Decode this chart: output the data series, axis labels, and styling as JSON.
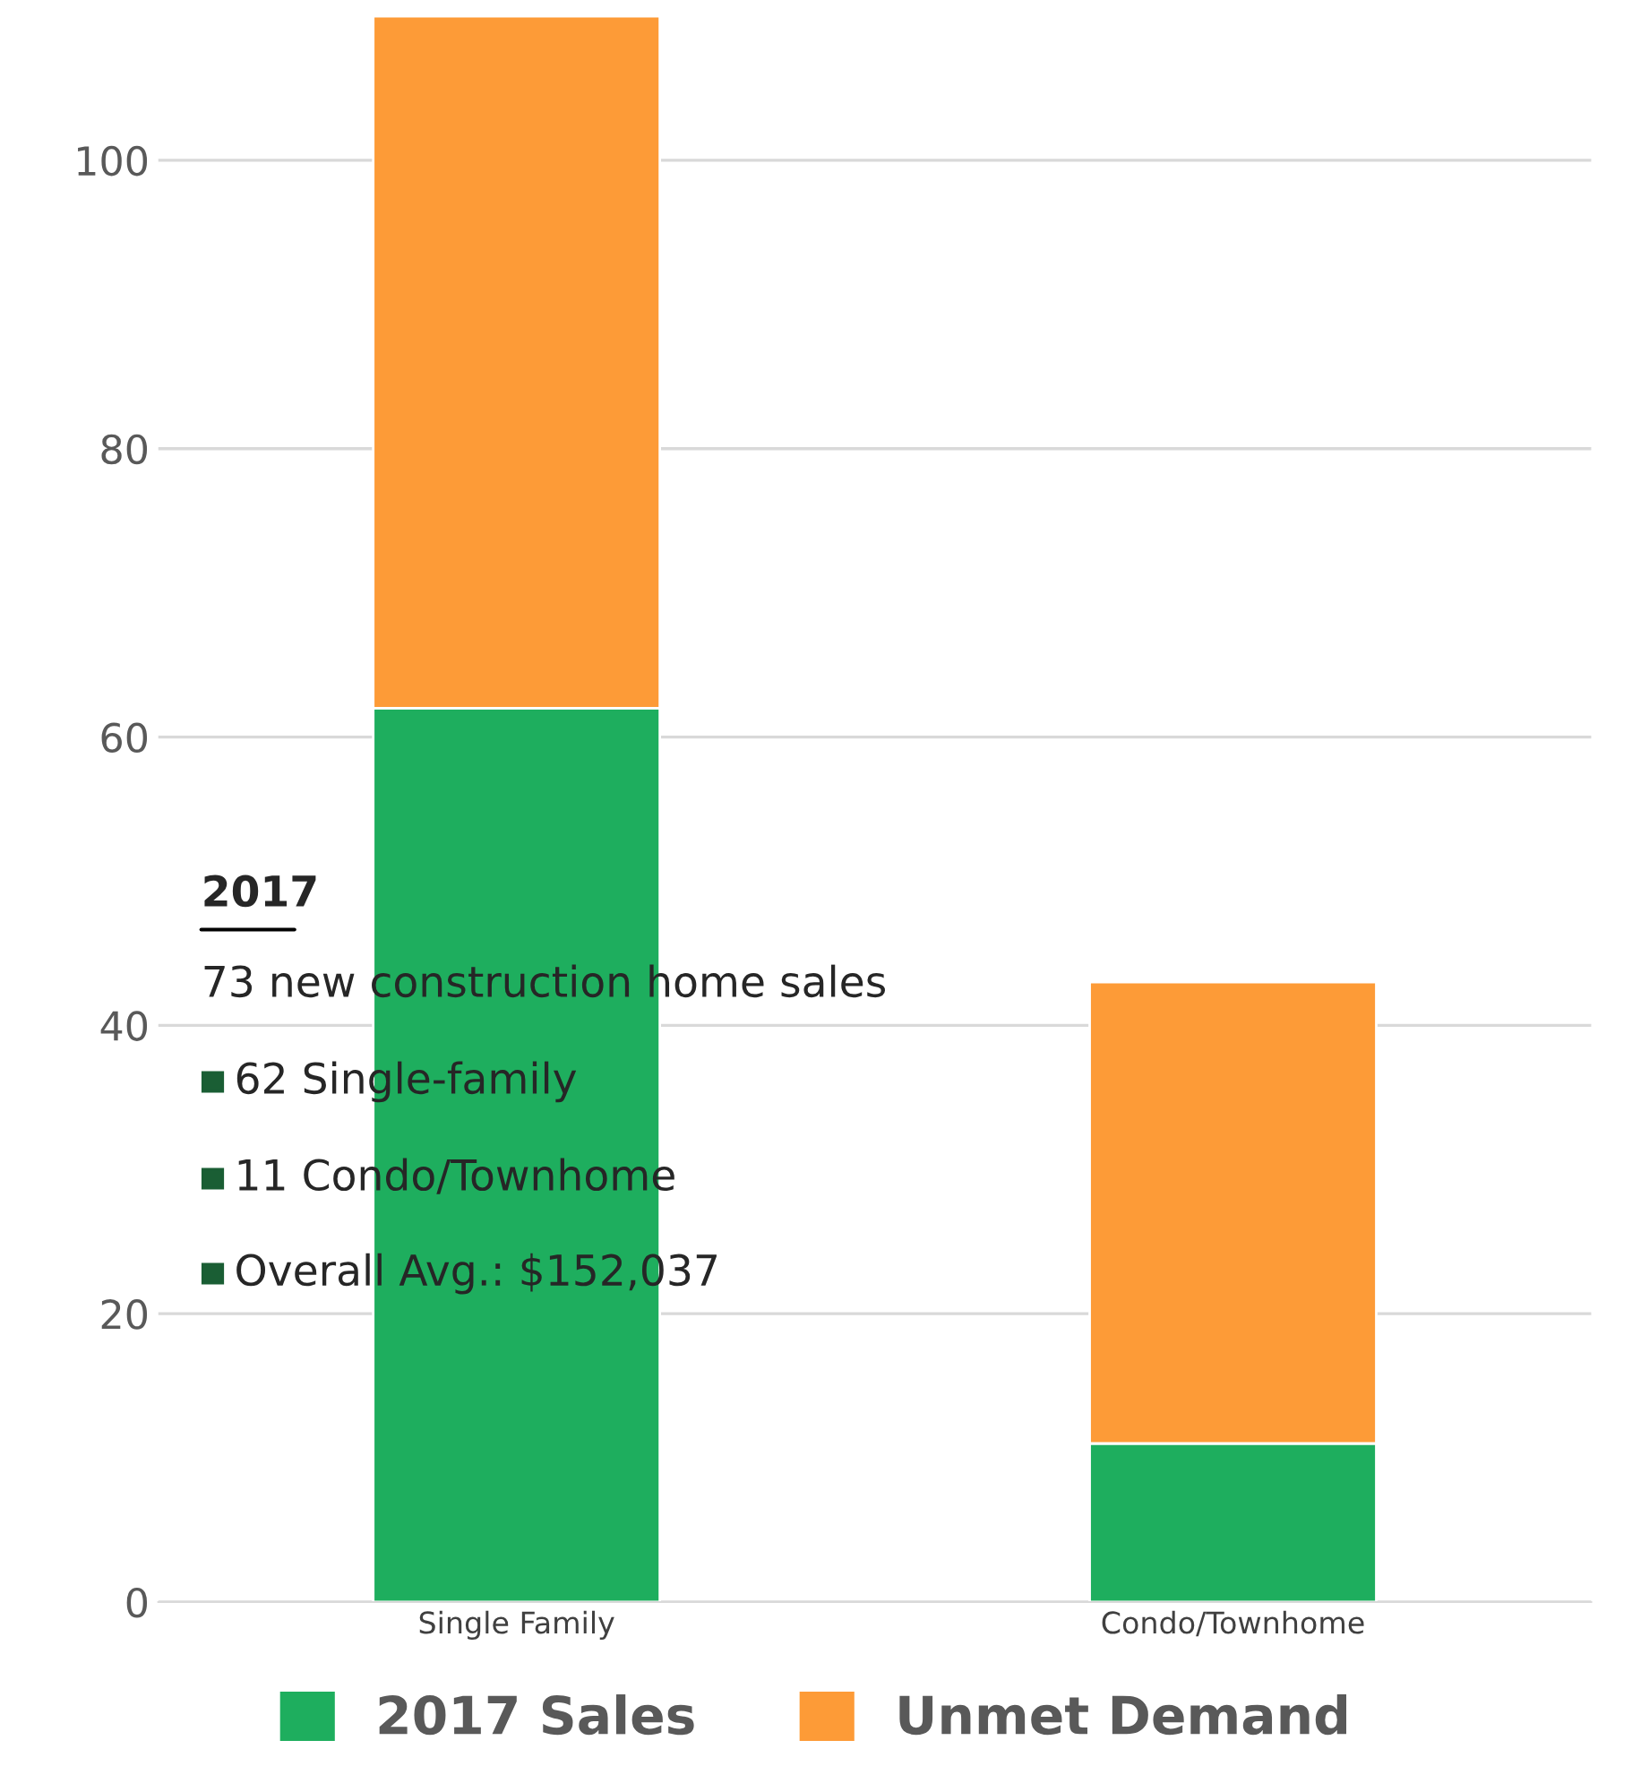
{
  "chart_data": {
    "type": "bar",
    "stacked": true,
    "categories": [
      "Single Family",
      "Condo/Townhome"
    ],
    "series": [
      {
        "name": "2017 Sales",
        "color": "#1eae5e",
        "values": [
          62,
          11
        ]
      },
      {
        "name": "Unmet Demand",
        "color": "#fd9b37",
        "values": [
          48,
          32
        ]
      }
    ],
    "ylim": [
      0,
      110
    ],
    "yticks": [
      0,
      20,
      40,
      60,
      80,
      100
    ],
    "grid": "y",
    "legend": "bottom",
    "annotations": [
      "2017",
      "73 new construction home sales",
      "62 Single-family",
      "11 Condo/Townhome",
      "Overall Avg.: $152,037"
    ]
  }
}
